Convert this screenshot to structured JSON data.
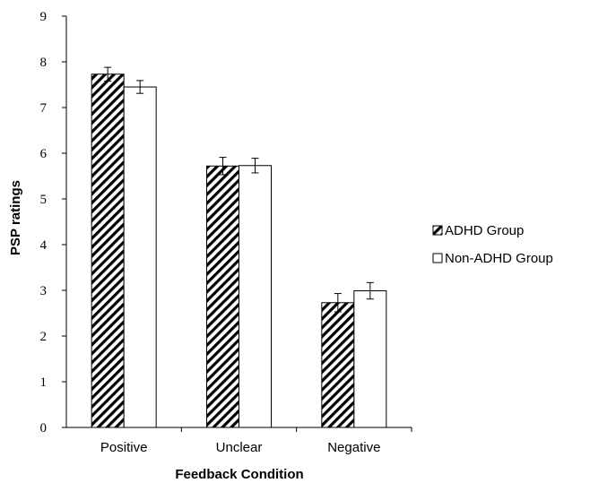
{
  "chart_data": {
    "type": "bar",
    "title": "",
    "xlabel": "Feedback Condition",
    "ylabel": "PSP ratings",
    "categories": [
      "Positive",
      "Unclear",
      "Negative"
    ],
    "ylim": [
      0,
      9
    ],
    "yticks": [
      "0",
      "1",
      "2",
      "3",
      "4",
      "5",
      "6",
      "7",
      "8",
      "9"
    ],
    "grid": false,
    "legend_position": "right",
    "series": [
      {
        "name": "ADHD Group",
        "pattern": "diagonal-hatch",
        "values": [
          7.73,
          5.72,
          2.73
        ],
        "errors": [
          0.15,
          0.19,
          0.2
        ]
      },
      {
        "name": "Non-ADHD Group",
        "pattern": "solid-white",
        "values": [
          7.45,
          5.73,
          2.99
        ],
        "errors": [
          0.14,
          0.16,
          0.18
        ]
      }
    ]
  }
}
